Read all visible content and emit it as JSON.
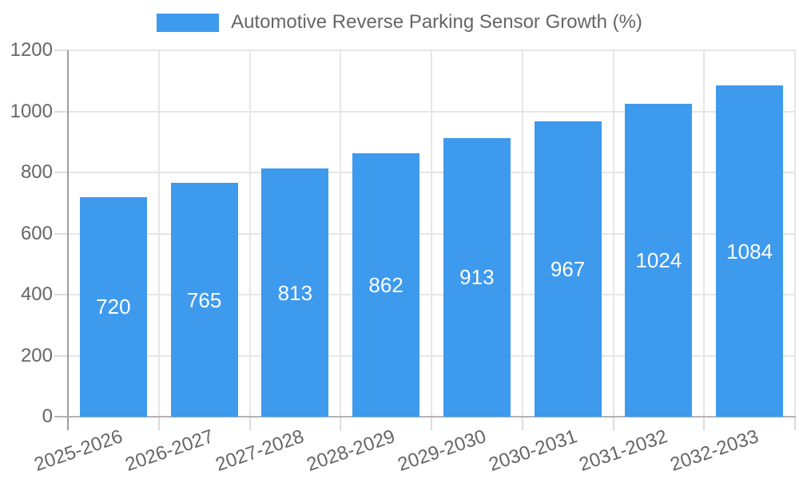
{
  "legend": {
    "label": "Automotive Reverse Parking Sensor Growth (%)"
  },
  "chart_data": {
    "type": "bar",
    "title": "",
    "categories": [
      "2025-2026",
      "2026-2027",
      "2027-2028",
      "2028-2029",
      "2029-2030",
      "2030-2031",
      "2031-2032",
      "2032-2033"
    ],
    "series": [
      {
        "name": "Automotive Reverse Parking Sensor Growth (%)",
        "values": [
          720,
          765,
          813,
          862,
          913,
          967,
          1024,
          1084
        ]
      }
    ],
    "xlabel": "",
    "ylabel": "",
    "ylim": [
      0,
      1200
    ],
    "yticks": [
      0,
      200,
      400,
      600,
      800,
      1000,
      1200
    ],
    "grid": true,
    "legend_position": "top",
    "bar_color": "#3E9AED",
    "value_label_color": "#FFFFFF",
    "axis_text_color": "#666666",
    "gridline_color": "#E6E6E6",
    "tick_color": "#DCDCDC",
    "y_axis_line_color": "#9E9E9E",
    "x_axis_line_color": "#B3B3B3"
  }
}
